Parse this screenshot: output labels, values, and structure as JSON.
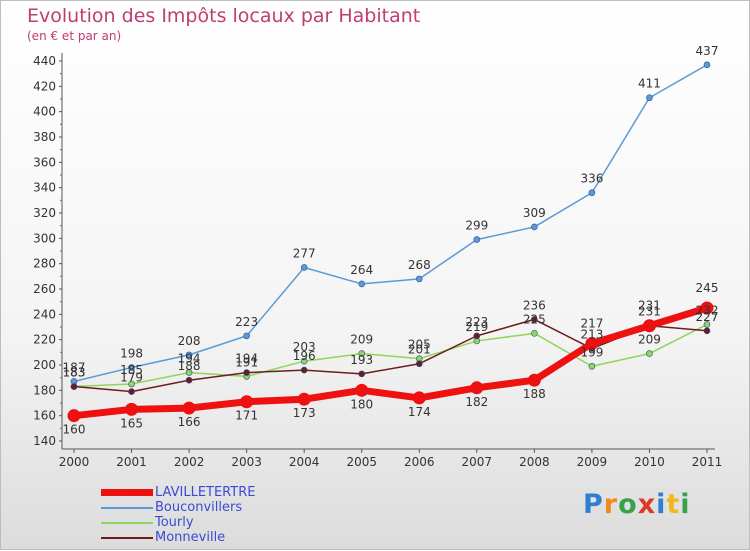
{
  "chart_data": {
    "type": "line",
    "title": "Evolution des Impôts locaux par Habitant",
    "subtitle": "(en € et par an)",
    "x": [
      "2000",
      "2001",
      "2002",
      "2003",
      "2004",
      "2005",
      "2006",
      "2007",
      "2008",
      "2009",
      "2010",
      "2011"
    ],
    "yticks": [
      140,
      160,
      180,
      200,
      220,
      240,
      260,
      280,
      300,
      320,
      340,
      360,
      380,
      400,
      420,
      440
    ],
    "ylim": [
      140,
      440
    ],
    "grid": false,
    "legend_position": "bottom-left",
    "series": [
      {
        "name": "LAVILLETERTRE",
        "color": "#ee1111",
        "values": [
          160,
          165,
          166,
          171,
          173,
          180,
          174,
          182,
          188,
          217,
          231,
          245
        ]
      },
      {
        "name": "Bouconvillers",
        "color": "#5b9bd5",
        "values": [
          187,
          198,
          208,
          223,
          277,
          264,
          268,
          299,
          309,
          336,
          411,
          437
        ]
      },
      {
        "name": "Tourly",
        "color": "#8fd65a",
        "values": [
          183,
          185,
          194,
          191,
          203,
          209,
          205,
          219,
          225,
          199,
          209,
          232
        ]
      },
      {
        "name": "Monneville",
        "color": "#6b1d1d",
        "values": [
          183,
          179,
          188,
          194,
          196,
          193,
          201,
          223,
          236,
          213,
          231,
          227
        ]
      }
    ]
  },
  "brand": {
    "text": "Proxiti"
  }
}
